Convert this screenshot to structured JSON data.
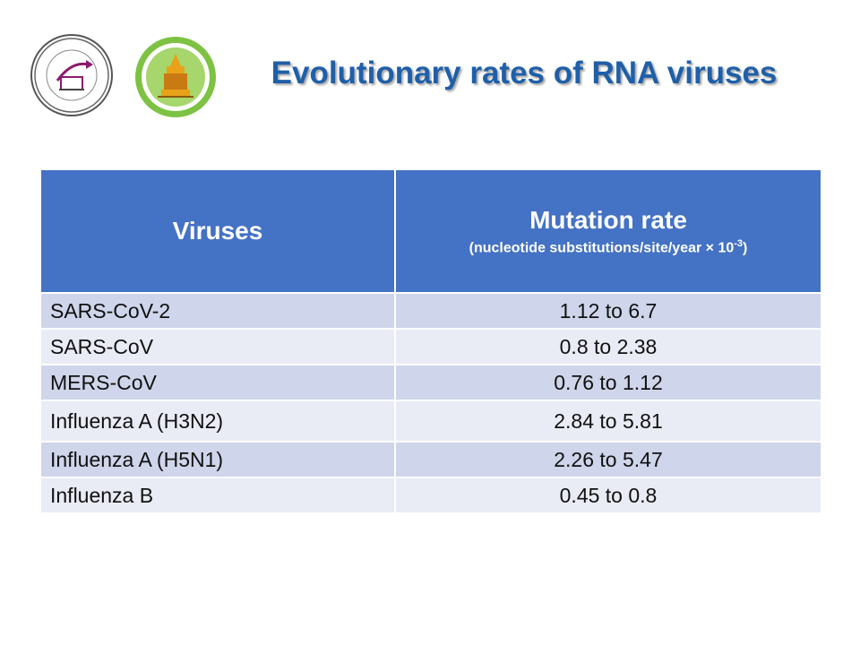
{
  "title": "Evolutionary rates of RNA viruses",
  "logos": [
    {
      "icon": "excellence-center-seal-icon"
    },
    {
      "icon": "chulalongkorn-medicine-seal-icon"
    }
  ],
  "table": {
    "headers": {
      "virus": "Viruses",
      "rate_main": "Mutation rate",
      "rate_sub": "(nucleotide substitutions/site/year × 10",
      "rate_sup": "-3",
      "rate_close": ")"
    },
    "rows": [
      {
        "virus": "SARS-CoV-2",
        "rate": "1.12 to 6.7"
      },
      {
        "virus": "SARS-CoV",
        "rate": "0.8 to 2.38"
      },
      {
        "virus": "MERS-CoV",
        "rate": "0.76 to 1.12"
      },
      {
        "virus": "Influenza A (H3N2)",
        "rate": "2.84 to 5.81"
      },
      {
        "virus": "Influenza A (H5N1)",
        "rate": "2.26 to 5.47"
      },
      {
        "virus": "Influenza B",
        "rate": "0.45 to 0.8"
      }
    ]
  },
  "colors": {
    "title": "#1f5fa8",
    "header_bg": "#4472c4",
    "row_odd": "#cfd5ea",
    "row_even": "#e9ebf5"
  }
}
